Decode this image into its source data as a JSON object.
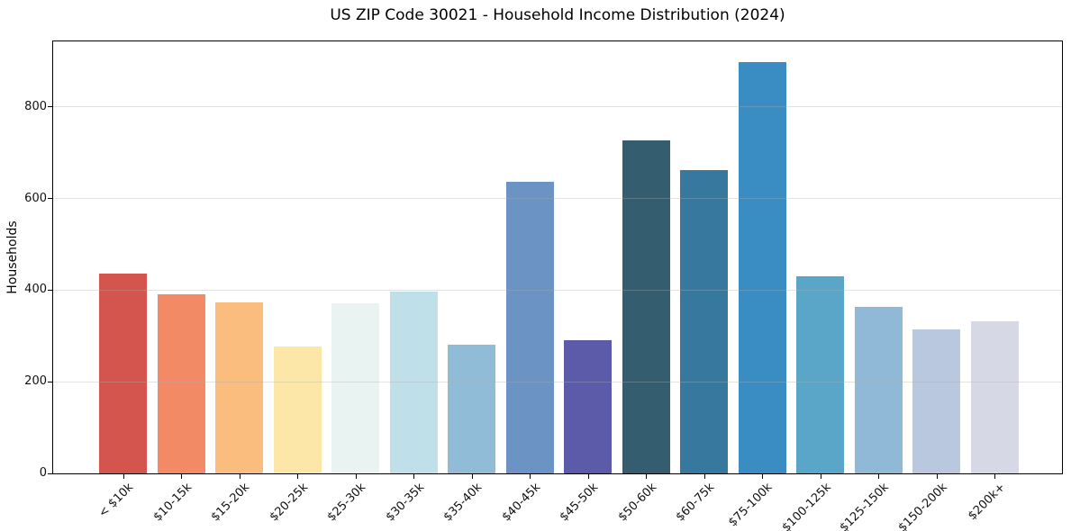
{
  "chart_data": {
    "type": "bar",
    "title": "US ZIP Code 30021 - Household Income Distribution (2024)",
    "xlabel": "",
    "ylabel": "Households",
    "ylim": [
      0,
      943
    ],
    "yticks": [
      0,
      200,
      400,
      600,
      800
    ],
    "grid": "horizontal",
    "legend": "none",
    "categories": [
      "< $10k",
      "$10-15k",
      "$15-20k",
      "$20-25k",
      "$25-30k",
      "$30-35k",
      "$35-40k",
      "$40-45k",
      "$45-50k",
      "$50-60k",
      "$60-75k",
      "$75-100k",
      "$100-125k",
      "$125-150k",
      "$150-200k",
      "$200k+"
    ],
    "values": [
      436,
      391,
      374,
      278,
      372,
      397,
      280,
      637,
      290,
      727,
      662,
      897,
      431,
      364,
      314,
      332
    ],
    "bar_colors": [
      "#d4544e",
      "#f28a66",
      "#fabd7e",
      "#fde7a8",
      "#e8f3f2",
      "#bfe0e9",
      "#90bcd8",
      "#6b93c4",
      "#5c5baa",
      "#345d70",
      "#37789e",
      "#398dc2",
      "#5aa6c8",
      "#90b8d7",
      "#b9c7df",
      "#d6d8e5"
    ],
    "spine_color": "#000000",
    "text_color": "#111111"
  }
}
